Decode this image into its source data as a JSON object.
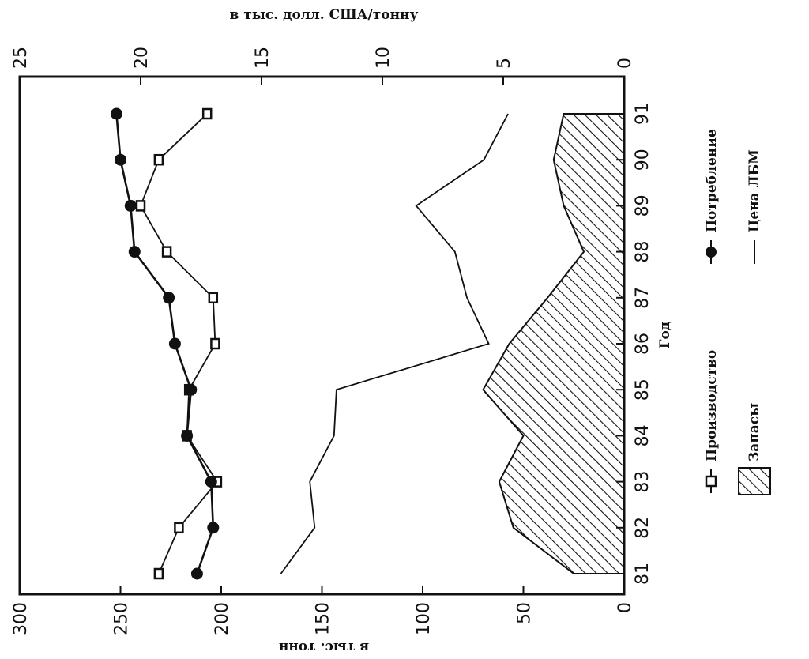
{
  "chart_data": {
    "type": "line",
    "xlabel": "Год",
    "ylabel_left": "в тыс. тонн",
    "ylabel_right": "в тыс. долл. США/тонну",
    "categories": [
      "81",
      "82",
      "83",
      "84",
      "85",
      "86",
      "87",
      "88",
      "89",
      "90",
      "91"
    ],
    "y_left": {
      "lim": [
        0,
        300
      ],
      "ticks": [
        "0",
        "50",
        "100",
        "150",
        "200",
        "250",
        "300"
      ]
    },
    "y_right": {
      "lim": [
        0,
        25
      ],
      "ticks": [
        "0",
        "5",
        "10",
        "15",
        "20",
        "25"
      ]
    },
    "series": [
      {
        "name": "Производство",
        "kind": "line-square-marker",
        "axis": "left",
        "values": [
          231,
          221,
          202,
          217,
          216,
          203,
          204,
          227,
          240,
          231,
          207
        ]
      },
      {
        "name": "Потребление",
        "kind": "line-circle-marker",
        "axis": "left",
        "values": [
          212,
          204,
          205,
          217,
          215,
          223,
          226,
          243,
          245,
          250,
          252
        ]
      },
      {
        "name": "Цена ЛБМ",
        "kind": "line",
        "axis": "right",
        "values": [
          14.2,
          12.8,
          13.0,
          12.0,
          11.9,
          5.6,
          6.5,
          7.0,
          8.6,
          5.8,
          4.8
        ]
      },
      {
        "name": "Запасы",
        "kind": "hatched-area",
        "axis": "left",
        "values": [
          25,
          55,
          62,
          50,
          70,
          57,
          38,
          20,
          30,
          35,
          30
        ]
      }
    ],
    "legend": {
      "position": "bottom",
      "items": [
        "Производство",
        "Потребление",
        "Запасы",
        "Цена ЛБМ"
      ]
    },
    "grid": false
  }
}
